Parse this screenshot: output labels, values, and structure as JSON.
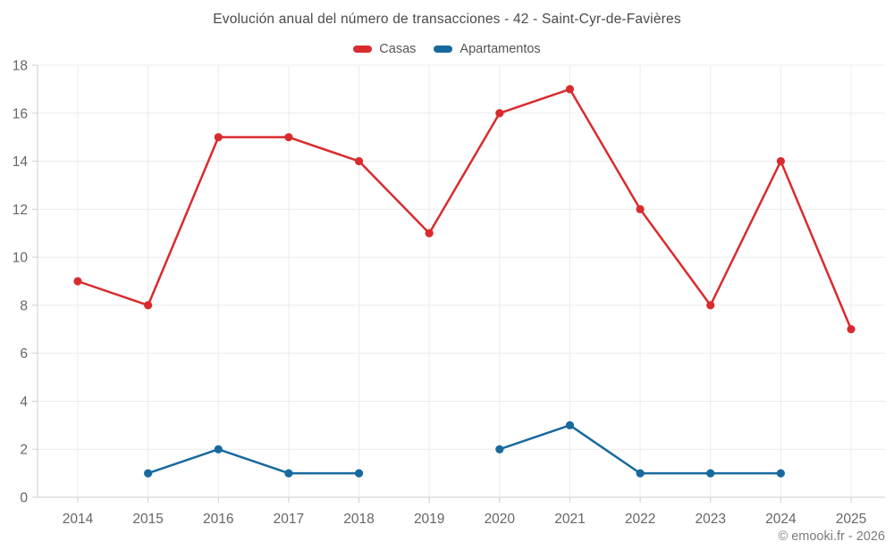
{
  "header": {
    "title": "Evolución anual del número de transacciones - 42 - Saint-Cyr-de-Favières"
  },
  "footer": {
    "copyright": "© emooki.fr - 2026"
  },
  "chart_data": {
    "type": "line",
    "title": "Evolución anual del número de transacciones - 42 - Saint-Cyr-de-Favières",
    "categories": [
      "2014",
      "2015",
      "2016",
      "2017",
      "2018",
      "2019",
      "2020",
      "2021",
      "2022",
      "2023",
      "2024",
      "2025"
    ],
    "series": [
      {
        "name": "Casas",
        "color": "#d92b2e",
        "values": [
          9,
          8,
          15,
          15,
          14,
          11,
          16,
          17,
          12,
          8,
          14,
          7
        ]
      },
      {
        "name": "Apartamentos",
        "color": "#17699e",
        "values": [
          null,
          1,
          2,
          1,
          1,
          null,
          2,
          3,
          1,
          1,
          1,
          null
        ]
      }
    ],
    "xlabel": "",
    "ylabel": "",
    "ylim": [
      0,
      18
    ],
    "ytick_step": 2,
    "grid": true,
    "legend_position": "top",
    "colors": {
      "grid": "#ececec",
      "axis": "#cccccc",
      "tick_label": "#666666"
    }
  }
}
